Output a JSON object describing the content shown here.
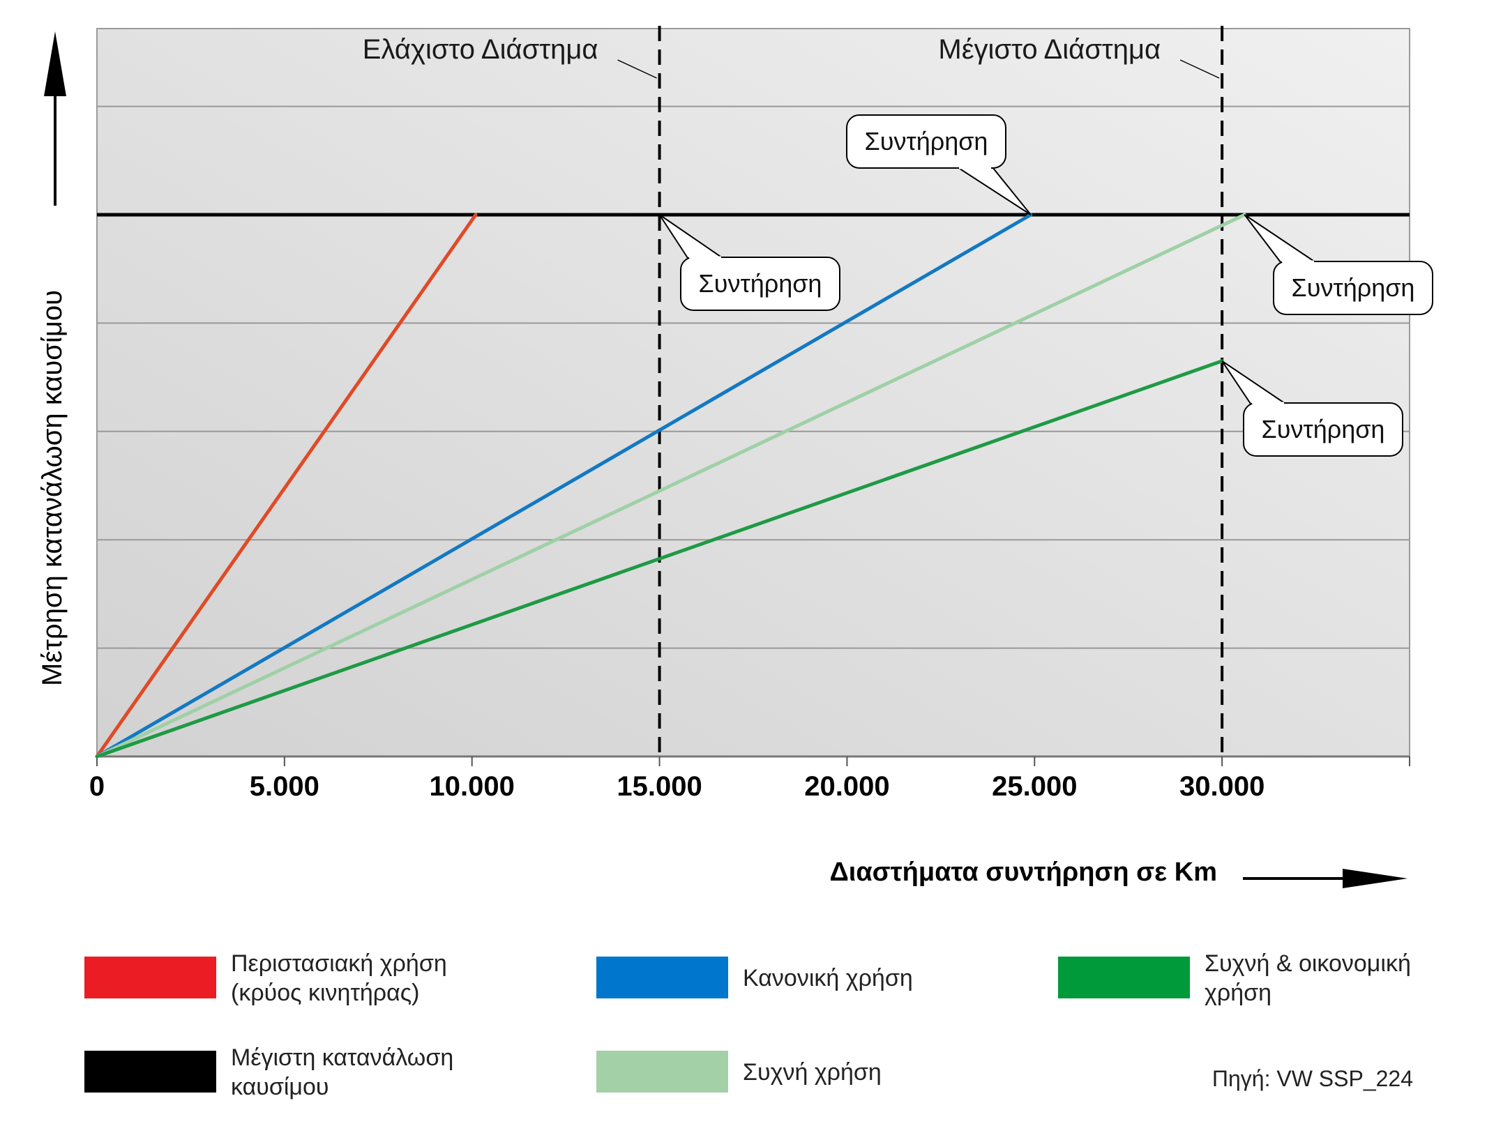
{
  "chart_data": {
    "type": "line",
    "xlabel": "Διαστήματα συντήρηση σε Km",
    "ylabel": "Μέτρηση κατανάλωση καυσίμου",
    "xlim": [
      0,
      35000
    ],
    "ylim": [
      0,
      100
    ],
    "x_ticks": [
      "0",
      "5.000",
      "10.000",
      "15.000",
      "20.000",
      "25.000",
      "30.000"
    ],
    "x_tick_values": [
      0,
      5000,
      10000,
      15000,
      20000,
      25000,
      30000
    ],
    "grid": "horizontal",
    "grid_values": [
      20,
      40,
      60,
      80,
      100,
      120
    ],
    "max_consumption": 100,
    "intervals": [
      {
        "x": 15000,
        "label": "Ελάχιστο Διάστημα"
      },
      {
        "x": 30000,
        "label": "Μέγιστο Διάστημα"
      }
    ],
    "series": [
      {
        "name": "Περιστασιακή χρήση (κρύος κινητήρας)",
        "color": "#e04a26",
        "points": [
          [
            0,
            0
          ],
          [
            10100,
            100
          ]
        ]
      },
      {
        "name": "Κανονική χρήση",
        "color": "#1279c2",
        "points": [
          [
            0,
            0
          ],
          [
            24900,
            100
          ]
        ]
      },
      {
        "name": "Συχνή χρήση",
        "color": "#9fd0a6",
        "points": [
          [
            0,
            0
          ],
          [
            30600,
            100
          ]
        ]
      },
      {
        "name": "Συχνή & οικονομική χρήση",
        "color": "#1e9a45",
        "points": [
          [
            0,
            0
          ],
          [
            30000,
            73
          ]
        ]
      }
    ],
    "annotations": [
      {
        "text": "Συντήρηση",
        "x": 24900,
        "y": 100
      },
      {
        "text": "Συντήρηση",
        "x": 15000,
        "y": 100
      },
      {
        "text": "Συντήρηση",
        "x": 30600,
        "y": 100
      },
      {
        "text": "Συντήρηση",
        "x": 30000,
        "y": 73
      }
    ],
    "legend": {
      "placement": "bottom",
      "items": [
        {
          "lines": [
            "Περιστασιακή χρήση",
            "(κρύος κινητήρας)"
          ],
          "color": "#ec1c24"
        },
        {
          "lines": [
            "Κανονική χρήση"
          ],
          "color": "#0077cc"
        },
        {
          "lines": [
            "Συχνή & οικονομική",
            "χρήση"
          ],
          "color": "#009a3a"
        },
        {
          "lines": [
            "Μέγιστη κατανάλωση",
            "καυσίμου"
          ],
          "color": "#000000"
        },
        {
          "lines": [
            "Συχνή χρήση"
          ],
          "color": "#a3d0a7"
        }
      ]
    },
    "source": "Πηγή: VW SSP_224"
  }
}
